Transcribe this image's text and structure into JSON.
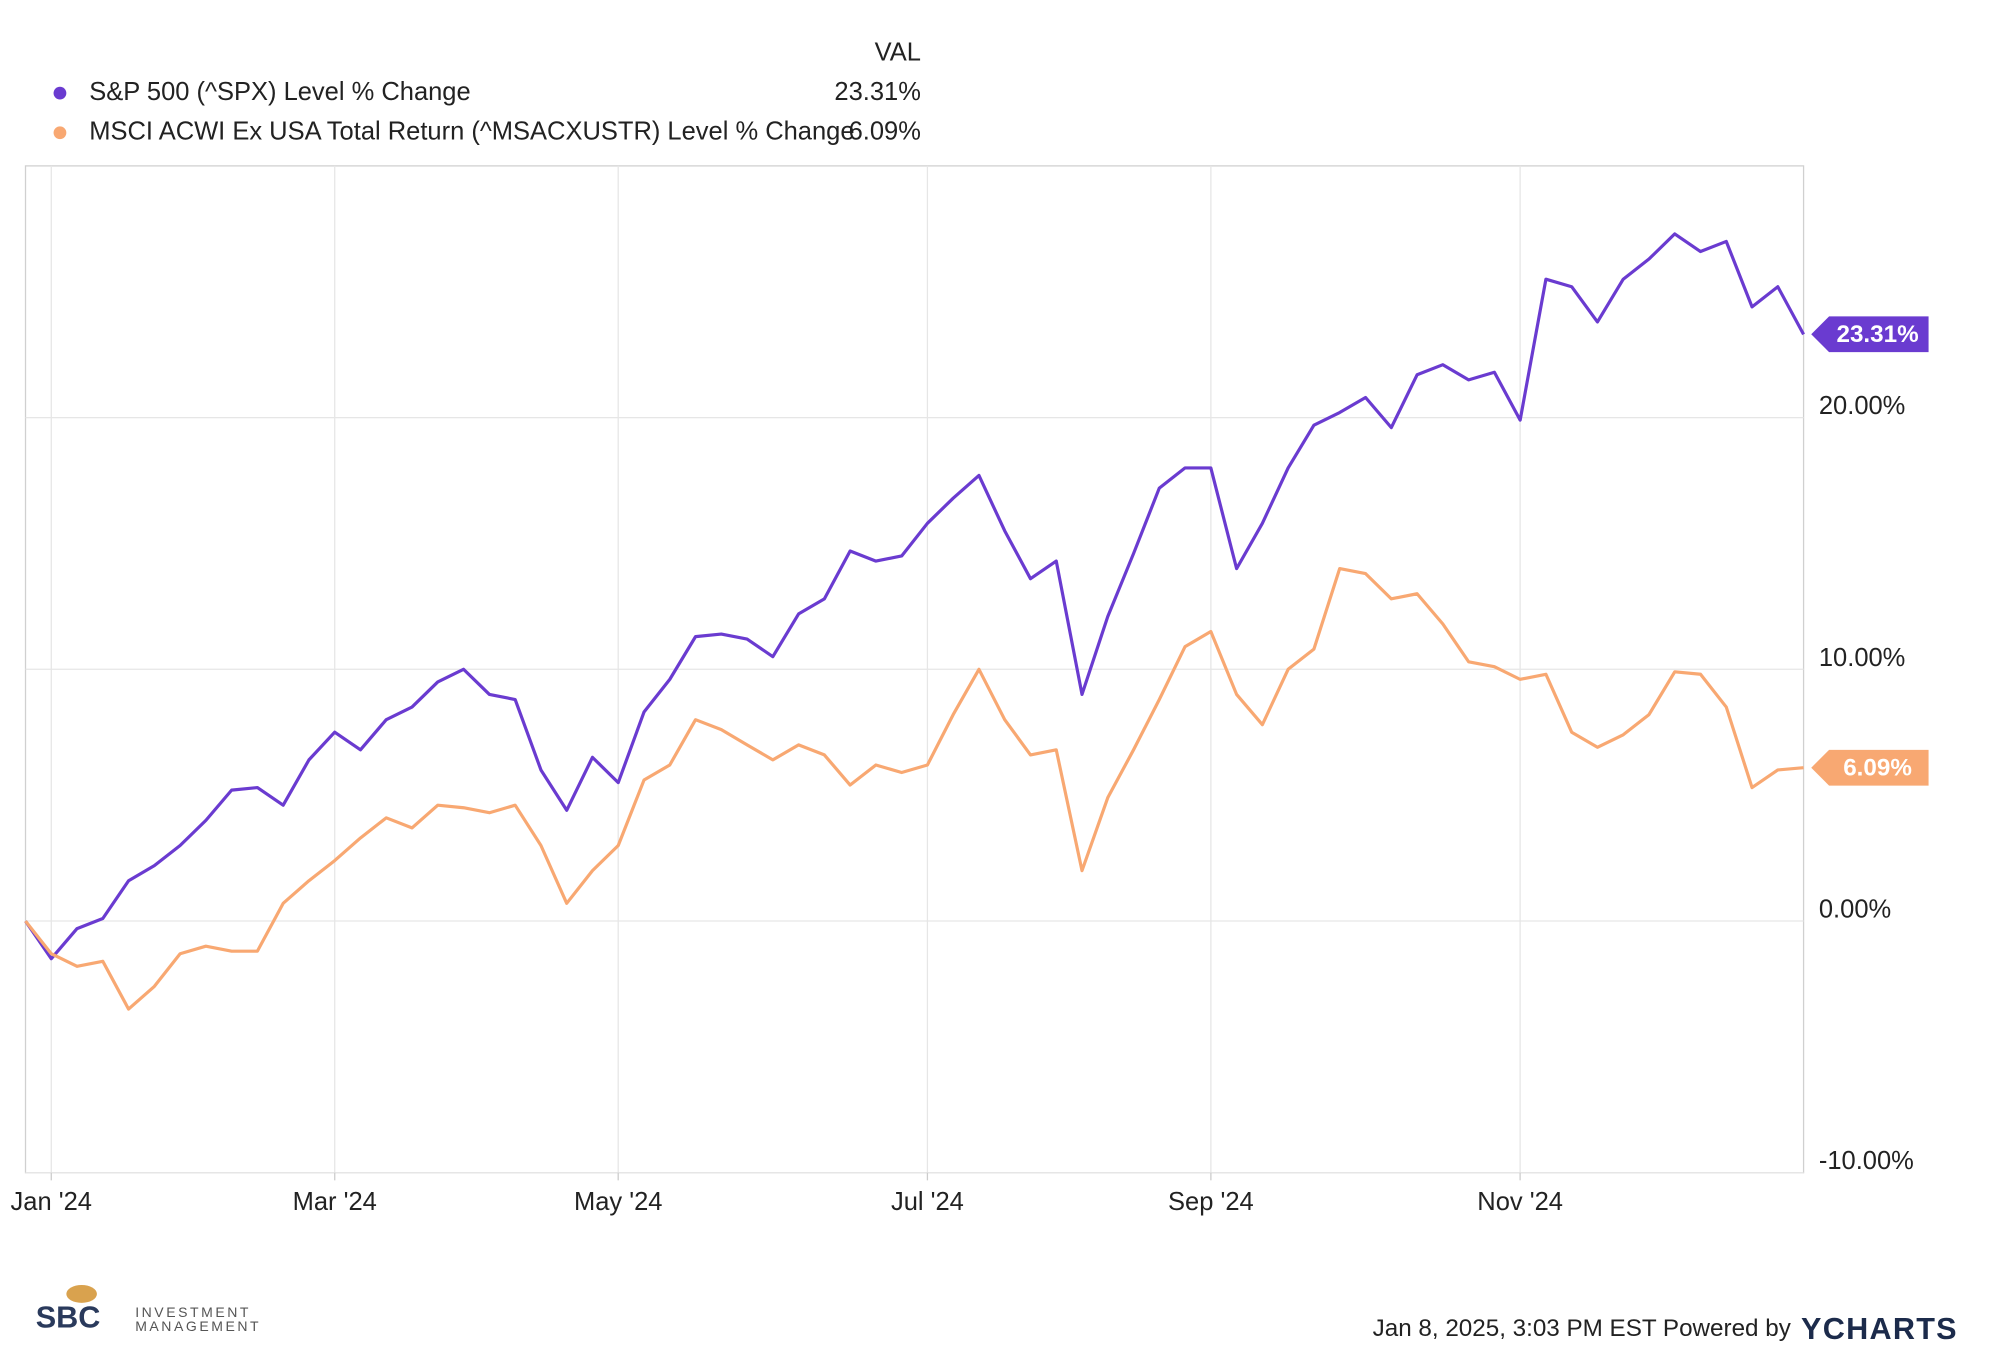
{
  "chart_data": {
    "type": "line",
    "legend_header": "VAL",
    "categories": [
      null,
      "Jan '24",
      null,
      null,
      null,
      null,
      null,
      null,
      null,
      null,
      null,
      null,
      "Mar '24",
      null,
      null,
      null,
      null,
      null,
      null,
      null,
      null,
      null,
      null,
      "May '24",
      null,
      null,
      null,
      null,
      null,
      null,
      null,
      null,
      null,
      null,
      null,
      "Jul '24",
      null,
      null,
      null,
      null,
      null,
      null,
      null,
      null,
      null,
      null,
      "Sep '24",
      null,
      null,
      null,
      null,
      null,
      null,
      null,
      null,
      null,
      null,
      null,
      "Nov '24",
      null,
      null,
      null,
      null,
      null,
      null,
      null,
      null,
      null,
      null,
      null
    ],
    "series": [
      {
        "name": "S&P 500 (^SPX) Level % Change",
        "color": "#6a3bd0",
        "legend_value": "23.31%",
        "values": [
          0,
          -1.5,
          -0.3,
          0.1,
          1.6,
          2.2,
          3.0,
          4.0,
          5.2,
          5.3,
          4.6,
          6.4,
          7.5,
          6.8,
          8.0,
          8.5,
          9.5,
          10.0,
          9.0,
          8.8,
          6.0,
          4.4,
          6.5,
          5.5,
          8.3,
          9.6,
          11.3,
          11.4,
          11.2,
          10.5,
          12.2,
          12.8,
          14.7,
          14.3,
          14.5,
          15.8,
          16.8,
          17.7,
          15.5,
          13.6,
          14.3,
          9.0,
          12.1,
          14.6,
          17.2,
          18.0,
          18.0,
          14.0,
          15.8,
          18.0,
          19.7,
          20.2,
          20.8,
          19.6,
          21.7,
          22.1,
          21.5,
          21.8,
          19.9,
          25.5,
          25.2,
          23.8,
          25.5,
          26.3,
          27.3,
          26.6,
          27.0,
          24.4,
          25.2,
          23.31
        ]
      },
      {
        "name": "MSCI ACWI Ex USA Total Return (^MSACXUSTR) Level % Change",
        "color": "#f8a872",
        "legend_value": "6.09%",
        "values": [
          0,
          -1.3,
          -1.8,
          -1.6,
          -3.5,
          -2.6,
          -1.3,
          -1.0,
          -1.2,
          -1.2,
          0.7,
          1.6,
          2.4,
          3.3,
          4.1,
          3.7,
          4.6,
          4.5,
          4.3,
          4.6,
          3.0,
          0.7,
          2.0,
          3.0,
          5.6,
          6.2,
          8.0,
          7.6,
          7.0,
          6.4,
          7.0,
          6.6,
          5.4,
          6.2,
          5.9,
          6.2,
          8.2,
          10.0,
          8.0,
          6.6,
          6.8,
          2.0,
          4.9,
          6.8,
          8.8,
          10.9,
          11.5,
          9.0,
          7.8,
          10.0,
          10.8,
          14.0,
          13.8,
          12.8,
          13.0,
          11.8,
          10.3,
          10.1,
          9.6,
          9.8,
          7.5,
          6.9,
          7.4,
          8.2,
          9.9,
          9.8,
          8.5,
          5.3,
          6.0,
          6.09
        ]
      }
    ],
    "ylim": [
      -10,
      30
    ],
    "yticks": [
      {
        "value": -10,
        "label": "-10.00%"
      },
      {
        "value": 0,
        "label": "0.00%"
      },
      {
        "value": 10,
        "label": "10.00%"
      },
      {
        "value": 20,
        "label": "20.00%"
      }
    ],
    "grid": true
  },
  "footer": {
    "timestamp": "Jan 8, 2025, 3:03 PM EST Powered by",
    "brand": "YCHARTS"
  },
  "logo": {
    "name": "SBC",
    "line1": "INVESTMENT",
    "line2": "MANAGEMENT"
  }
}
